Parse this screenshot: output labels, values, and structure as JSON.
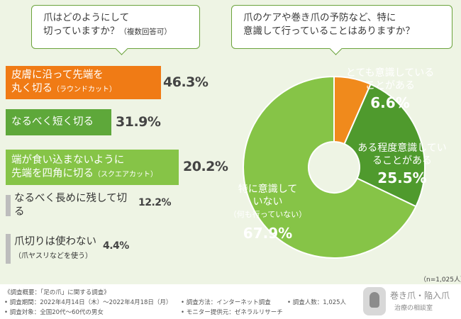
{
  "question1": {
    "line1": "爪はどのようにして",
    "line2": "切っていますか？",
    "note": "（複数回答可）"
  },
  "question2": {
    "line1": "爪のケアや巻き爪の予防など、特に",
    "line2": "意識して行っていることはありますか？"
  },
  "chart_data": [
    {
      "type": "bar",
      "orientation": "horizontal",
      "categories": [
        "皮膚に沿って先端を丸く切る（ラウンドカット）",
        "なるべく短く切る",
        "端が食い込まないように先端を四角に切る（スクエアカット）",
        "なるべく長めに残して切る",
        "爪切りは使わない（爪ヤスリなどを使う）"
      ],
      "values": [
        46.3,
        31.9,
        20.2,
        12.2,
        4.4
      ],
      "unit": "%"
    },
    {
      "type": "pie",
      "labels": [
        "とても意識していることがある",
        "ある程度意識していることがある",
        "特に意識していない（何も行っていない）"
      ],
      "values": [
        6.6,
        25.5,
        67.9
      ],
      "colors": [
        "#f08a1c",
        "#4f9a2d",
        "#86c447"
      ],
      "note": "（n=1,025人）"
    }
  ],
  "bars": [
    {
      "line1": "皮膚に沿って先端を",
      "line2": "丸く切る",
      "sub": "（ラウンドカット）",
      "value": "46.3%",
      "color": "#f07b15"
    },
    {
      "line1": "なるべく短く切る",
      "line2": "",
      "sub": "",
      "value": "31.9%",
      "color": "#5ea83a"
    },
    {
      "line1": "端が食い込まないように",
      "line2": "先端を四角に切る",
      "sub": "（スクエアカット）",
      "value": "20.2%",
      "color": "#86c447"
    },
    {
      "line1": "なるべく長めに残して切る",
      "line2": "",
      "sub": "",
      "value": "12.2%",
      "color": "#bdbdbd"
    },
    {
      "line1": "爪切りは使わない",
      "line2": "",
      "sub": "（爪ヤスリなどを使う）",
      "value": "4.4%",
      "color": "#bdbdbd"
    }
  ],
  "pie_labels": [
    {
      "line1": "とても意識している",
      "line2": "ことがある",
      "line3": "",
      "value": "6.6%"
    },
    {
      "line1": "ある程度意識してい",
      "line2": "ることがある",
      "line3": "",
      "value": "25.5%"
    },
    {
      "line1": "特に意識して",
      "line2": "いない",
      "line3": "（何も行っていない）",
      "value": "67.9%"
    }
  ],
  "n_label": "（n=1,025人）",
  "footer": {
    "title": "《調査概要：「足の爪」に関する調査》",
    "period": "• 調査期間：2022年4月14日（木）〜2022年4月18日（月）",
    "target": "• 調査対象：全国20代〜60代の男女",
    "method": "• 調査方法：インターネット調査",
    "provider": "• モニター提供元：ゼネラルリサーチ",
    "count": "• 調査人数：1,025人",
    "logo_line1": "巻き爪・陥入爪",
    "logo_line2": "治療の相談室"
  }
}
